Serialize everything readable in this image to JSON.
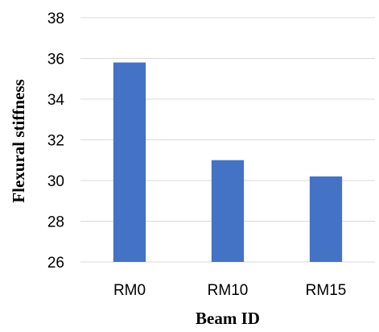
{
  "chart_data": {
    "type": "bar",
    "title": "",
    "xlabel": "Beam ID",
    "ylabel": "Flexural stiffness",
    "categories": [
      "RM0",
      "RM10",
      "RM15"
    ],
    "values": [
      35.8,
      31.0,
      30.2
    ],
    "ylim": [
      26,
      38
    ],
    "yticks": [
      "26",
      "28",
      "30",
      "32",
      "34",
      "36",
      "38"
    ],
    "grid": true,
    "legend": "none",
    "bar_color": "#4472c4",
    "grid_color": "#d9d9d9"
  }
}
